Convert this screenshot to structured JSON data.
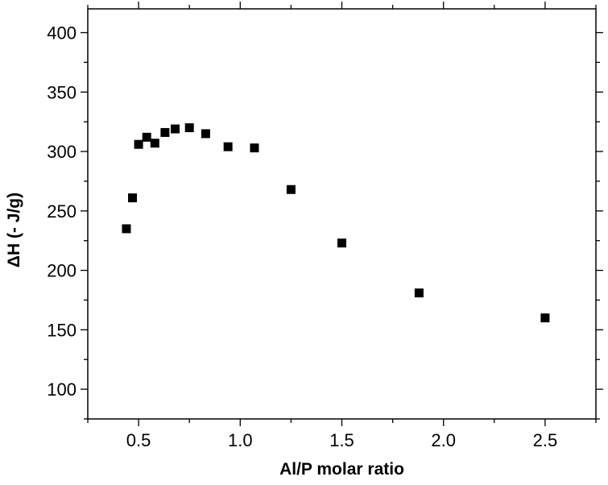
{
  "chart_data": {
    "type": "scatter",
    "title": "",
    "xlabel": "Al/P molar ratio",
    "ylabel": "ΔH (- J/g)",
    "xlim": [
      0.25,
      2.75
    ],
    "ylim": [
      75,
      420
    ],
    "x_ticks": [
      0.5,
      1.0,
      1.5,
      2.0,
      2.5
    ],
    "x_tick_labels": [
      "0.5",
      "1.0",
      "1.5",
      "2.0",
      "2.5"
    ],
    "y_ticks": [
      100,
      150,
      200,
      250,
      300,
      350,
      400
    ],
    "y_tick_labels": [
      "100",
      "150",
      "200",
      "250",
      "300",
      "350",
      "400"
    ],
    "grid": false,
    "legend": "none",
    "marker": "square",
    "marker_color": "#000000",
    "series": [
      {
        "x": [
          0.44,
          0.47,
          0.5,
          0.54,
          0.58,
          0.63,
          0.68,
          0.75,
          0.83,
          0.94,
          1.07,
          1.25,
          1.5,
          1.88,
          2.5
        ],
        "y": [
          235,
          261,
          306,
          312,
          307,
          316,
          319,
          320,
          315,
          304,
          303,
          268,
          223,
          181,
          160
        ]
      }
    ]
  }
}
